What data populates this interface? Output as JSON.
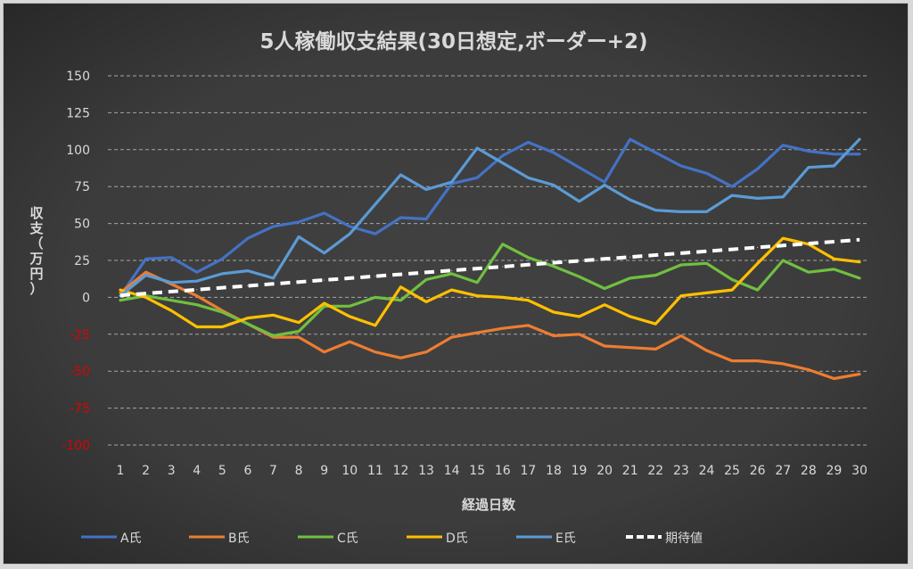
{
  "chart_data": {
    "type": "line",
    "title": "5人稼働収支結果(30日想定,ボーダー+2)",
    "xlabel": "経過日数",
    "ylabel": "収支（万円）",
    "ylim": [
      -100,
      150
    ],
    "yticks": [
      150,
      125,
      100,
      75,
      50,
      25,
      0,
      -25,
      -50,
      -75,
      -100
    ],
    "negative_tick_color": "#e00000",
    "grid": true,
    "legend_position": "bottom",
    "x": [
      1,
      2,
      3,
      4,
      5,
      6,
      7,
      8,
      9,
      10,
      11,
      12,
      13,
      14,
      15,
      16,
      17,
      18,
      19,
      20,
      21,
      22,
      23,
      24,
      25,
      26,
      27,
      28,
      29,
      30
    ],
    "series": [
      {
        "name": "A氏",
        "color": "#4472c4",
        "dashed": false,
        "values": [
          1,
          26,
          27,
          17,
          26,
          40,
          48,
          51,
          57,
          48,
          43,
          54,
          53,
          77,
          81,
          96,
          105,
          98,
          88,
          78,
          107,
          98,
          89,
          84,
          75,
          87,
          103,
          99,
          97,
          97
        ]
      },
      {
        "name": "B氏",
        "color": "#ed7d31",
        "dashed": false,
        "values": [
          3,
          17,
          9,
          1,
          -9,
          -18,
          -27,
          -27,
          -37,
          -30,
          -37,
          -41,
          -37,
          -27,
          -24,
          -21,
          -19,
          -26,
          -25,
          -33,
          -34,
          -35,
          -26,
          -36,
          -43,
          -43,
          -45,
          -49,
          -55,
          -52
        ]
      },
      {
        "name": "C氏",
        "color": "#70c040",
        "dashed": false,
        "values": [
          -2,
          1,
          -2,
          -5,
          -10,
          -18,
          -26,
          -23,
          -6,
          -6,
          0,
          -2,
          12,
          16,
          10,
          36,
          27,
          21,
          14,
          6,
          13,
          15,
          22,
          23,
          12,
          5,
          25,
          17,
          19,
          13
        ]
      },
      {
        "name": "D氏",
        "color": "#ffc000",
        "dashed": false,
        "values": [
          5,
          0,
          -9,
          -20,
          -20,
          -14,
          -12,
          -17,
          -4,
          -13,
          -19,
          7,
          -3,
          5,
          1,
          0,
          -2,
          -10,
          -13,
          -5,
          -13,
          -18,
          1,
          3,
          5,
          23,
          40,
          36,
          26,
          24
        ]
      },
      {
        "name": "E氏",
        "color": "#5b9bd5",
        "dashed": false,
        "values": [
          1,
          15,
          10,
          11,
          16,
          18,
          13,
          41,
          30,
          43,
          63,
          83,
          73,
          78,
          101,
          91,
          81,
          76,
          65,
          76,
          66,
          59,
          58,
          58,
          69,
          67,
          68,
          88,
          89,
          107
        ]
      },
      {
        "name": "期待値",
        "color": "#ffffff",
        "dashed": true,
        "values": [
          1.3,
          2.6,
          3.9,
          5.2,
          6.5,
          7.8,
          9.1,
          10.4,
          11.7,
          13,
          14.3,
          15.6,
          16.9,
          18.2,
          19.5,
          20.8,
          22.1,
          23.4,
          24.7,
          26,
          27.3,
          28.6,
          29.9,
          31.2,
          32.5,
          33.8,
          35.1,
          36.4,
          37.7,
          39
        ]
      }
    ]
  }
}
